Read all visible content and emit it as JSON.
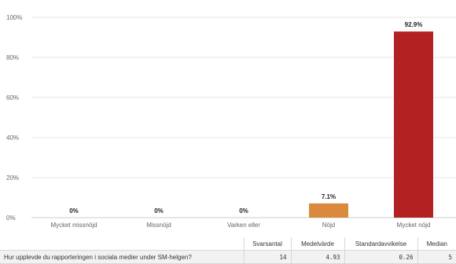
{
  "chart_data": {
    "type": "bar",
    "categories": [
      "Mycket missnöjd",
      "Missnöjd",
      "Varken eller",
      "Nöjd",
      "Mycket nöjd"
    ],
    "values": [
      0,
      0,
      0,
      7.1,
      92.9
    ],
    "value_labels": [
      "0%",
      "0%",
      "0%",
      "7.1%",
      "92.9%"
    ],
    "colors": [
      "#9e9e9e",
      "#9e9e9e",
      "#9e9e9e",
      "#d98a3d",
      "#b22222"
    ],
    "ylim": [
      0,
      100
    ],
    "yticks": [
      0,
      20,
      40,
      60,
      80,
      100
    ],
    "ytick_labels": [
      "0%",
      "20%",
      "40%",
      "60%",
      "80%",
      "100%"
    ],
    "grid": true
  },
  "stats_table": {
    "headers": [
      "Svarsantal",
      "Medelvärde",
      "Standardavvikelse",
      "Median"
    ],
    "row": {
      "question": "Hur upplevde du rapporteringen i sociala medier under SM-helgen?",
      "values": [
        "14",
        "4.93",
        "0.26",
        "5"
      ]
    }
  }
}
